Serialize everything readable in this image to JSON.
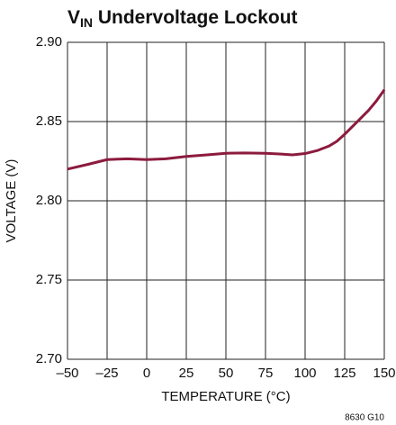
{
  "chart_data": {
    "type": "line",
    "title": [
      "V",
      "IN",
      " Undervoltage Lockout"
    ],
    "xlabel": "TEMPERATURE (°C)",
    "ylabel": "VOLTAGE (V)",
    "annotation": "8630 G10",
    "xlim": [
      -50,
      150
    ],
    "ylim": [
      2.7,
      2.9
    ],
    "xticks": [
      {
        "value": -50,
        "label": "–50"
      },
      {
        "value": -25,
        "label": "–25"
      },
      0,
      25,
      50,
      75,
      100,
      125,
      150
    ],
    "yticks": [
      {
        "value": 2.7,
        "label": "2.70"
      },
      2.75,
      {
        "value": 2.8,
        "label": "2.80"
      },
      2.85,
      {
        "value": 2.9,
        "label": "2.90"
      }
    ],
    "grid": true,
    "series": [
      {
        "color": "#8c1b3e",
        "x": [
          -50,
          -37,
          -25,
          -12,
          0,
          12,
          25,
          38,
          50,
          62,
          75,
          85,
          92,
          100,
          108,
          115,
          120,
          125,
          132,
          140,
          145,
          150
        ],
        "values": [
          2.82,
          2.823,
          2.826,
          2.8265,
          2.826,
          2.8265,
          2.828,
          2.829,
          2.83,
          2.8302,
          2.83,
          2.8295,
          2.829,
          2.8298,
          2.8318,
          2.8345,
          2.8375,
          2.842,
          2.849,
          2.857,
          2.863,
          2.87
        ]
      }
    ]
  }
}
